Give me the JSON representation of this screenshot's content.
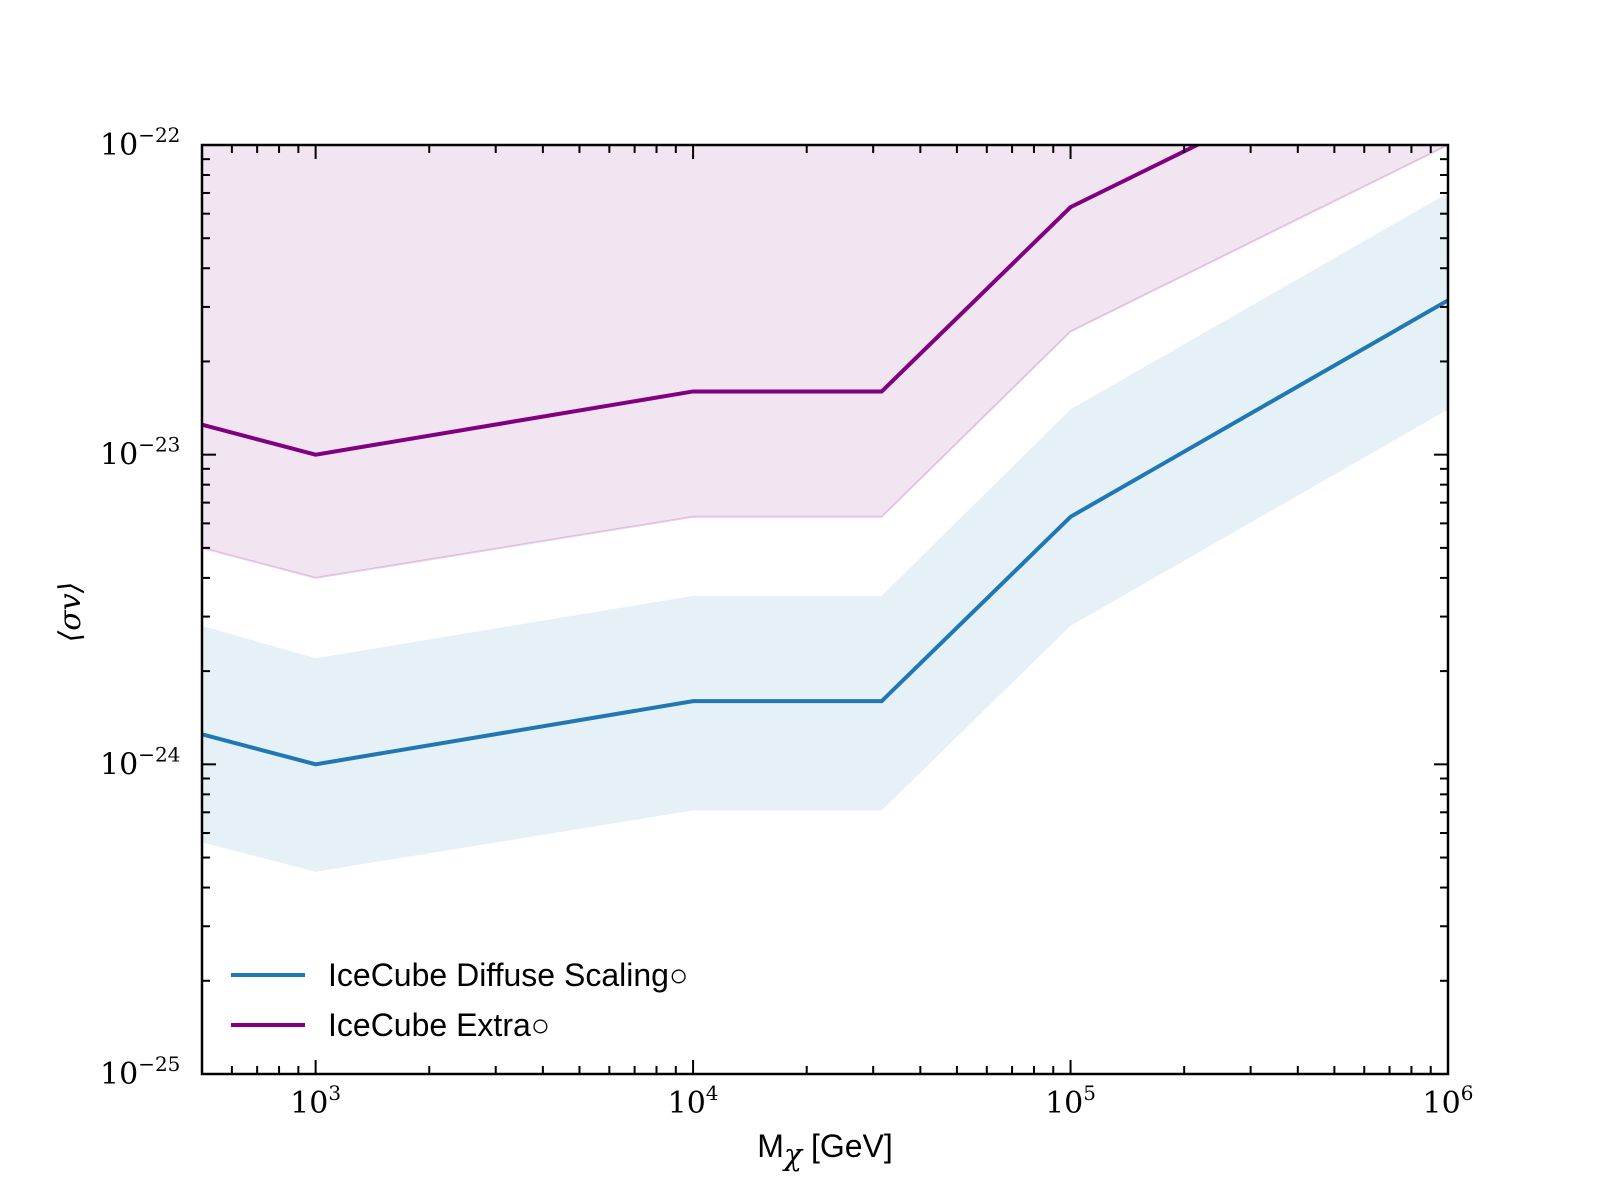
{
  "chart_data": {
    "type": "line",
    "title": "",
    "xlabel": "M",
    "xlabel_sub": "χ",
    "xlabel_unit": " [GeV]",
    "ylabel": "⟨σv⟩",
    "xscale": "log",
    "yscale": "log",
    "xlim": [
      500,
      1000000
    ],
    "ylim": [
      1e-25,
      1e-22
    ],
    "x_ticks": [
      {
        "value": 1000,
        "base": "10",
        "exp": "3"
      },
      {
        "value": 10000,
        "base": "10",
        "exp": "4"
      },
      {
        "value": 100000,
        "base": "10",
        "exp": "5"
      },
      {
        "value": 1000000,
        "base": "10",
        "exp": "6"
      }
    ],
    "y_ticks": [
      {
        "value": 1e-25,
        "base": "10",
        "exp": "−25"
      },
      {
        "value": 1e-24,
        "base": "10",
        "exp": "−24"
      },
      {
        "value": 1e-23,
        "base": "10",
        "exp": "−23"
      },
      {
        "value": 1e-22,
        "base": "10",
        "exp": "−22"
      }
    ],
    "x": [
      500,
      1000,
      10000,
      31600,
      100000,
      1000000
    ],
    "series": [
      {
        "name": "IceCube Diffuse Scaling○",
        "color": "#1f77b4",
        "values": [
          1.25e-24,
          1e-24,
          1.6e-24,
          1.6e-24,
          6.3e-24,
          3.15e-23
        ],
        "band_lower": [
          5.6e-25,
          4.5e-25,
          7.1e-25,
          7.1e-25,
          2.8e-24,
          1.4e-23
        ],
        "band_upper": [
          2.8e-24,
          2.2e-24,
          3.5e-24,
          3.5e-24,
          1.4e-23,
          7e-23
        ]
      },
      {
        "name": "IceCube Extra○",
        "color": "#800080",
        "values": [
          1.25e-23,
          1e-23,
          1.6e-23,
          1.6e-23,
          6.3e-23,
          2.5e-22
        ],
        "band_lower": [
          5e-24,
          4e-24,
          6.3e-24,
          6.3e-24,
          2.5e-23,
          1e-22
        ],
        "band_upper": [
          1e-21,
          1e-21,
          1e-21,
          1e-21,
          1e-21,
          1e-21
        ]
      }
    ],
    "legend_position": "lower-left",
    "grid": false
  }
}
